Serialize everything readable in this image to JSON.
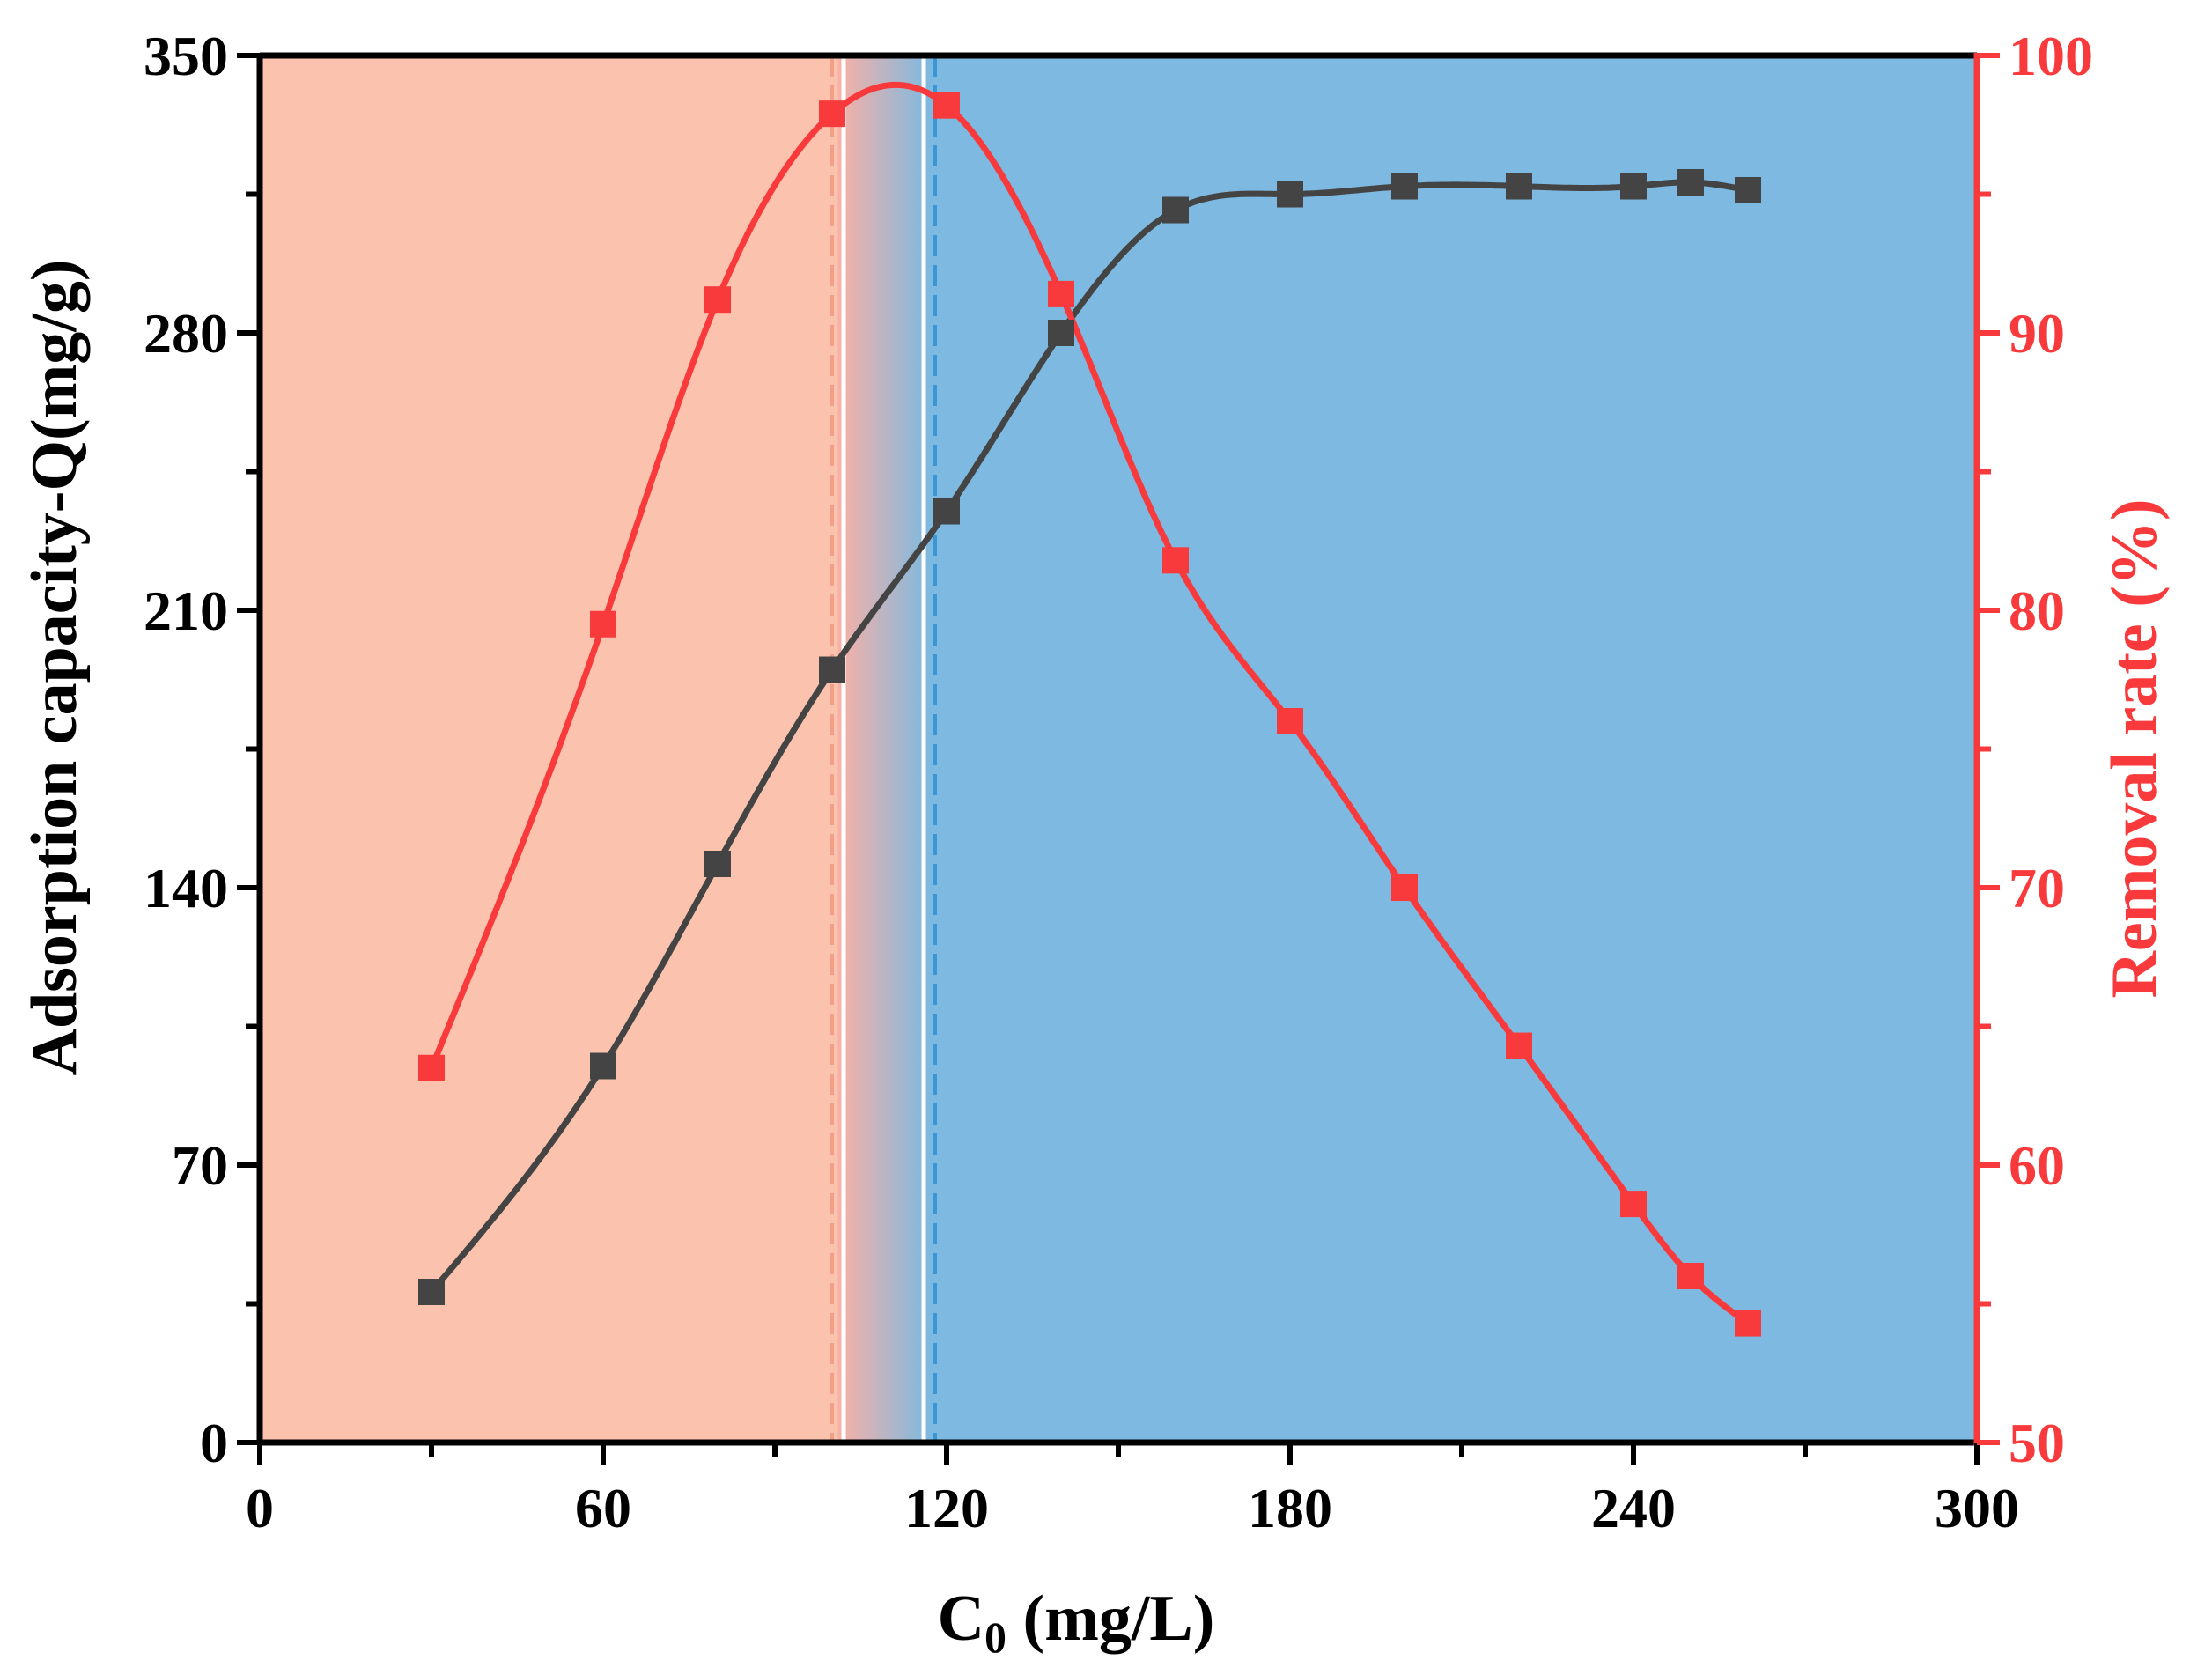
{
  "chart_data": {
    "type": "line",
    "title": "",
    "xlabel": {
      "main": "C",
      "sub": "0",
      "unit": " (mg/L)"
    },
    "ylabel_left": "Adsorption capacity-Q(mg/g)",
    "ylabel_right": "Removal rate (%)",
    "xlim": [
      0,
      300
    ],
    "ylim_left": [
      0,
      350
    ],
    "ylim_right": [
      50,
      100
    ],
    "x_ticks": [
      "0",
      "60",
      "120",
      "180",
      "240",
      "300"
    ],
    "y_left_ticks": [
      "0",
      "70",
      "140",
      "210",
      "280",
      "350"
    ],
    "y_right_ticks": [
      "50",
      "60",
      "70",
      "80",
      "90",
      "100"
    ],
    "regions": [
      {
        "name": "low-concentration-region",
        "x_start": 0,
        "x_end": 101,
        "color": "#fbc3ae"
      },
      {
        "name": "transition-region",
        "x_start": 101,
        "x_end": 117,
        "color_start": "#f9b1a6",
        "color_end": "#7db9e0"
      },
      {
        "name": "high-concentration-region",
        "x_start": 117,
        "x_end": 300,
        "color": "#7db9e0"
      }
    ],
    "reference_lines": [
      {
        "name": "red-dashed-line",
        "x": 100,
        "color": "#f0a088"
      },
      {
        "name": "white-line-left",
        "x": 102,
        "color": "#ffffff"
      },
      {
        "name": "white-line-right",
        "x": 116,
        "color": "#ffffff"
      },
      {
        "name": "blue-dashed-line",
        "x": 118,
        "color": "#3a97d4"
      }
    ],
    "series": [
      {
        "name": "Adsorption capacity-Q",
        "axis": "left",
        "color": "#444444",
        "x": [
          30,
          60,
          80,
          100,
          120,
          140,
          160,
          180,
          200,
          220,
          240,
          250,
          260
        ],
        "y": [
          38,
          95,
          146,
          195,
          235,
          280,
          311,
          315,
          317,
          317,
          317,
          318,
          316
        ]
      },
      {
        "name": "Removal rate",
        "axis": "right",
        "color": "#f83a3c",
        "x": [
          30,
          60,
          80,
          100,
          120,
          140,
          160,
          180,
          200,
          220,
          240,
          250,
          260
        ],
        "y": [
          63.5,
          79.5,
          91.2,
          97.9,
          98.2,
          91.4,
          81.8,
          76.0,
          70.0,
          64.3,
          58.6,
          56.0,
          54.3
        ]
      }
    ],
    "colors": {
      "axis": "#000000",
      "right_axis": "#f83a3c"
    }
  }
}
